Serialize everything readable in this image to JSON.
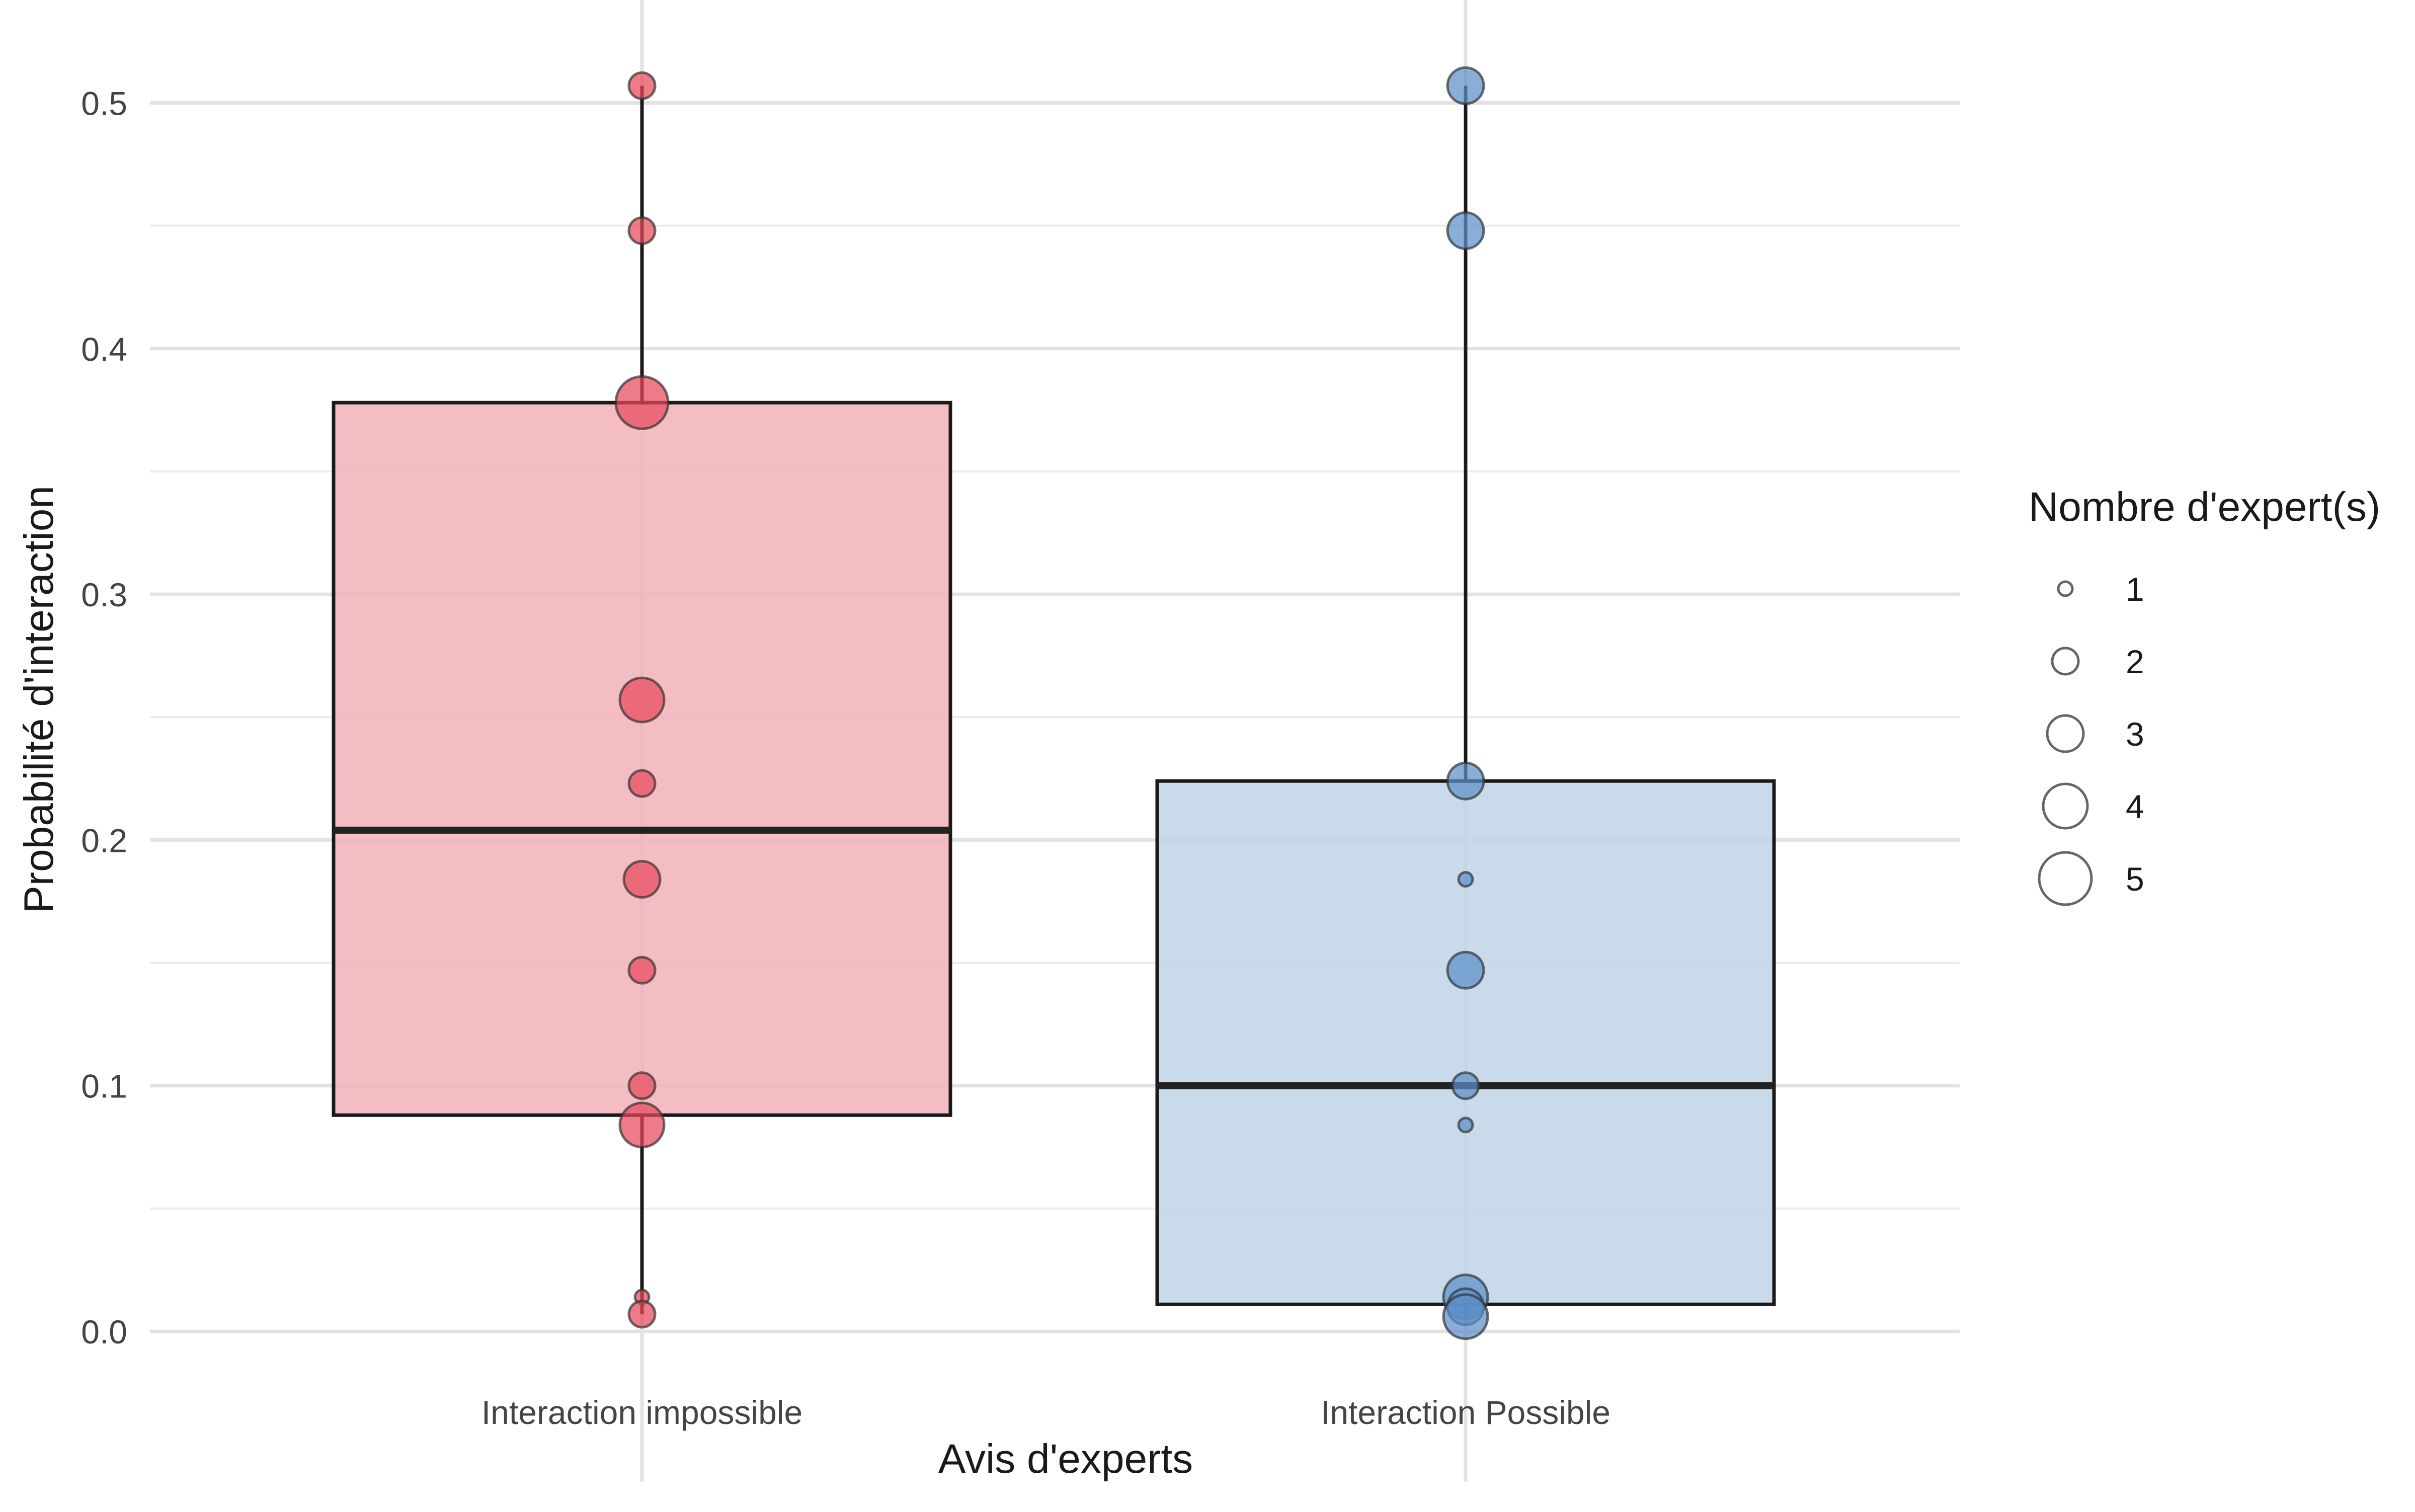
{
  "chart_data": {
    "type": "boxplot",
    "title": "",
    "xlabel": "Avis d'experts",
    "ylabel": "Probabilité d'interaction",
    "ylim": [
      -0.055,
      0.545
    ],
    "yticks": [
      0.0,
      0.1,
      0.2,
      0.3,
      0.4,
      0.5
    ],
    "ytick_labels": [
      "0.0",
      "0.1",
      "0.2",
      "0.3",
      "0.4",
      "0.5"
    ],
    "grid": true,
    "categories": [
      "Interaction impossible",
      "Interaction Possible"
    ],
    "boxes": [
      {
        "category": "Interaction impossible",
        "color": "#E8485A",
        "fill": "#F2B2BA",
        "q1": 0.088,
        "median": 0.204,
        "q3": 0.378,
        "whisker_low": 0.007,
        "whisker_high": 0.507,
        "points": [
          {
            "y": 0.507,
            "n": 2
          },
          {
            "y": 0.448,
            "n": 2
          },
          {
            "y": 0.378,
            "n": 5
          },
          {
            "y": 0.257,
            "n": 4
          },
          {
            "y": 0.223,
            "n": 2
          },
          {
            "y": 0.184,
            "n": 3
          },
          {
            "y": 0.147,
            "n": 2
          },
          {
            "y": 0.1,
            "n": 2
          },
          {
            "y": 0.084,
            "n": 4
          },
          {
            "y": 0.014,
            "n": 1
          },
          {
            "y": 0.007,
            "n": 2
          }
        ]
      },
      {
        "category": "Interaction Possible",
        "color": "#5B8FC7",
        "fill": "#C0D3E6",
        "q1": 0.011,
        "median": 0.1,
        "q3": 0.224,
        "whisker_low": 0.006,
        "whisker_high": 0.507,
        "points": [
          {
            "y": 0.507,
            "n": 3
          },
          {
            "y": 0.448,
            "n": 3
          },
          {
            "y": 0.224,
            "n": 3
          },
          {
            "y": 0.184,
            "n": 1
          },
          {
            "y": 0.147,
            "n": 3
          },
          {
            "y": 0.1,
            "n": 2
          },
          {
            "y": 0.084,
            "n": 1
          },
          {
            "y": 0.014,
            "n": 4
          },
          {
            "y": 0.01,
            "n": 3
          },
          {
            "y": 0.006,
            "n": 4
          }
        ]
      }
    ],
    "legend": {
      "title": "Nombre d'expert(s)",
      "position": "right",
      "items": [
        "1",
        "2",
        "3",
        "4",
        "5"
      ]
    }
  }
}
